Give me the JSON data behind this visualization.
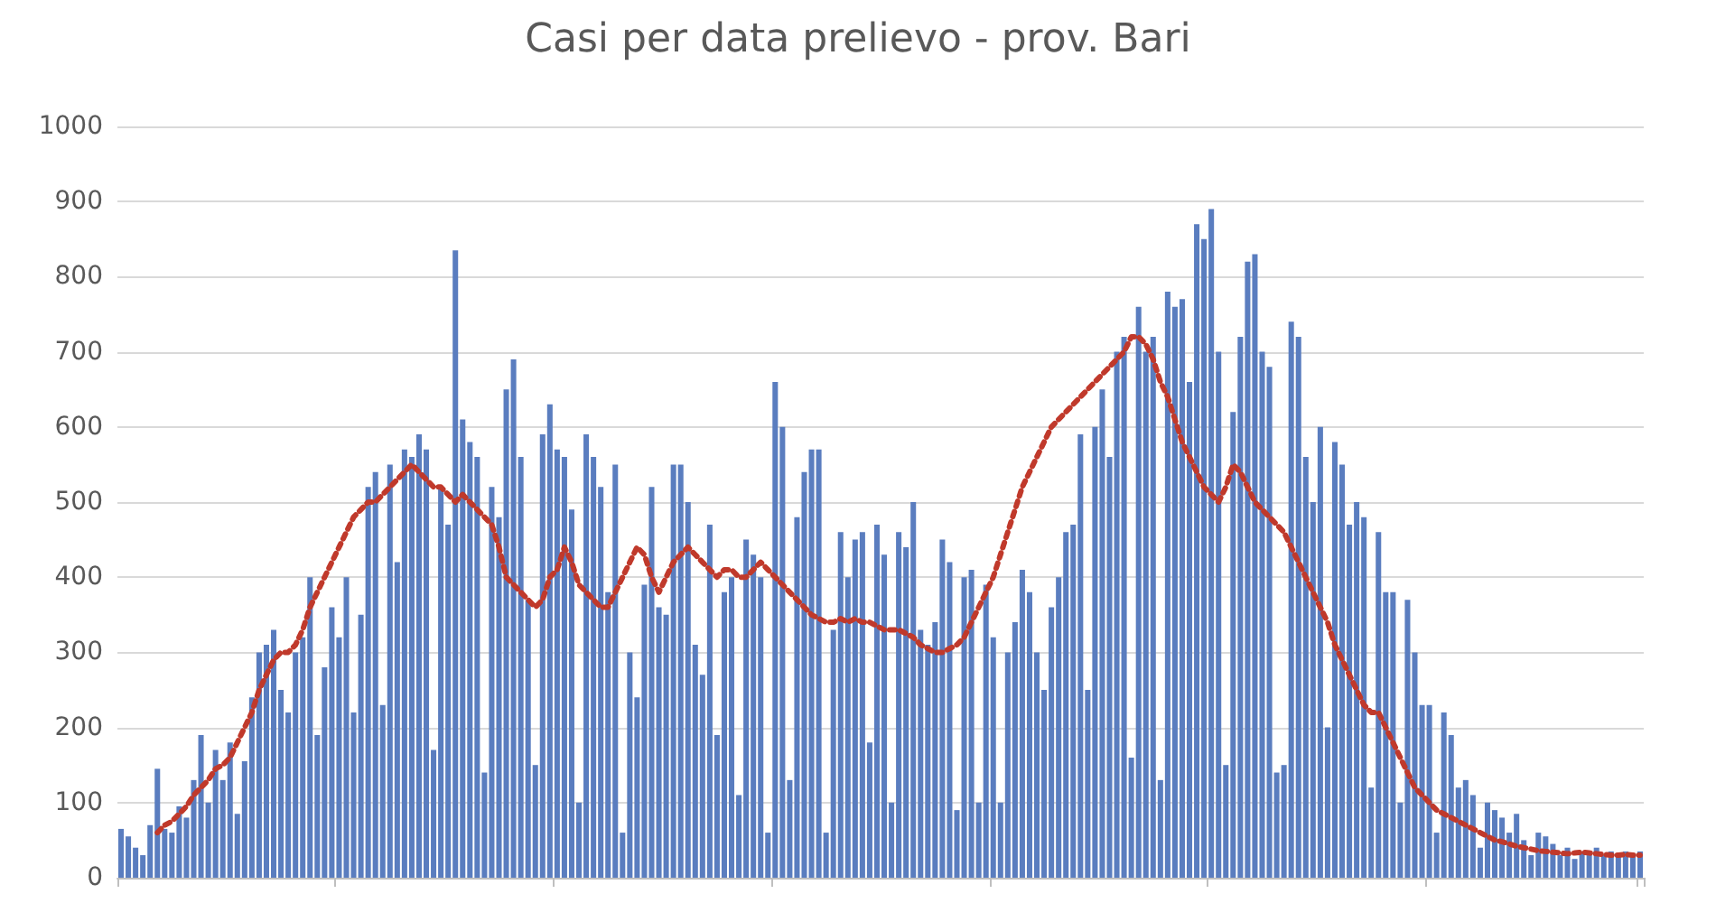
{
  "chart_data": {
    "type": "bar",
    "title": "Casi per data prelievo - prov. Bari",
    "categories": [
      null,
      null,
      null,
      null,
      null,
      null,
      null,
      null,
      null,
      null,
      null,
      null,
      null,
      null,
      null,
      null,
      null,
      null,
      null,
      null,
      null,
      null,
      null,
      null,
      null,
      null,
      null,
      null,
      null,
      null,
      null,
      null,
      null,
      null,
      null,
      null,
      null,
      null,
      null,
      null,
      null,
      null,
      null,
      null,
      null,
      null,
      null,
      null,
      null,
      null,
      null,
      null,
      null,
      null,
      null,
      null,
      null,
      null,
      null,
      null,
      null,
      null,
      null,
      null,
      null,
      null,
      null,
      null,
      null,
      null,
      null,
      null,
      null,
      null,
      null,
      null,
      null,
      null,
      null,
      null,
      null,
      null,
      null,
      null,
      null,
      null,
      null,
      null,
      null,
      null,
      null,
      null,
      null,
      null,
      null,
      null,
      null,
      null,
      null,
      null,
      null,
      null,
      null,
      null,
      null,
      null,
      null,
      null,
      null,
      null,
      null,
      null,
      null,
      null,
      null,
      null,
      null,
      null,
      null,
      null,
      null,
      null,
      null,
      null,
      null,
      null,
      null,
      null,
      null,
      null,
      null,
      null,
      null,
      null,
      null,
      null,
      null,
      null,
      null,
      null,
      null,
      null,
      null,
      null,
      null,
      null,
      null,
      null,
      null,
      null,
      null,
      null,
      null,
      null,
      null,
      null,
      null,
      null,
      null,
      null,
      null,
      null,
      null,
      null,
      null,
      null,
      null,
      null,
      null,
      null,
      null,
      null,
      null,
      null,
      null,
      null,
      null,
      null,
      null,
      null,
      null,
      null,
      null,
      null,
      null,
      null,
      null,
      null,
      null,
      null,
      null,
      null,
      null,
      null,
      null,
      null,
      null,
      null,
      null,
      null,
      null,
      null,
      null,
      null,
      null,
      null,
      null,
      null,
      null,
      null
    ],
    "series": [
      {
        "color": "#5a7dbf",
        "values": [
          65,
          55,
          40,
          30,
          70,
          145,
          65,
          60,
          95,
          80,
          130,
          190,
          100,
          170,
          130,
          180,
          85,
          155,
          240,
          300,
          310,
          330,
          250,
          220,
          300,
          320,
          400,
          190,
          280,
          360,
          320,
          400,
          220,
          350,
          520,
          540,
          230,
          550,
          420,
          570,
          560,
          590,
          570,
          170,
          520,
          470,
          835,
          610,
          580,
          560,
          140,
          520,
          480,
          650,
          690,
          560,
          370,
          150,
          590,
          630,
          570,
          560,
          490,
          100,
          590,
          560,
          520,
          380,
          550,
          60,
          300,
          240,
          390,
          520,
          360,
          350,
          550,
          550,
          500,
          310,
          270,
          470,
          190,
          380,
          400,
          110,
          450,
          430,
          400,
          60,
          660,
          600,
          130,
          480,
          540,
          570,
          570,
          60,
          330,
          460,
          400,
          450,
          460,
          180,
          470,
          430,
          100,
          460,
          440,
          500,
          330,
          310,
          340,
          450,
          420,
          90,
          400,
          410,
          100,
          390,
          320,
          100,
          300,
          340,
          410,
          380,
          300,
          250,
          360,
          400,
          460,
          470,
          590,
          250,
          600,
          650,
          560,
          700,
          720,
          160,
          760,
          700,
          720,
          130,
          780,
          760,
          770,
          660,
          870,
          850,
          890,
          700,
          150,
          620,
          720,
          820,
          830,
          700,
          680,
          140,
          150,
          740,
          720,
          560,
          500,
          600,
          200,
          580,
          550,
          470,
          500,
          480,
          120,
          460,
          380,
          380,
          100,
          370,
          300,
          230,
          230,
          60,
          220,
          190,
          120,
          130,
          110,
          40,
          100,
          90,
          80,
          60,
          85,
          50,
          30,
          60,
          55,
          45,
          30,
          40,
          25,
          35,
          30,
          40,
          30,
          35,
          30,
          35,
          30,
          35
        ]
      },
      {
        "type": "line",
        "color": "#c0392b",
        "line_style": "dotted",
        "values": [
          null,
          null,
          null,
          null,
          null,
          60,
          70,
          75,
          85,
          95,
          110,
          120,
          130,
          145,
          150,
          160,
          180,
          200,
          220,
          250,
          270,
          290,
          300,
          300,
          310,
          330,
          360,
          380,
          400,
          420,
          440,
          460,
          480,
          490,
          500,
          500,
          510,
          520,
          530,
          540,
          550,
          540,
          530,
          520,
          520,
          510,
          500,
          510,
          500,
          490,
          480,
          470,
          440,
          400,
          390,
          380,
          370,
          360,
          370,
          400,
          410,
          440,
          420,
          390,
          380,
          370,
          360,
          360,
          380,
          400,
          420,
          440,
          430,
          400,
          380,
          400,
          420,
          430,
          440,
          430,
          420,
          410,
          400,
          410,
          410,
          400,
          400,
          410,
          420,
          410,
          400,
          390,
          380,
          370,
          360,
          350,
          345,
          340,
          340,
          345,
          340,
          345,
          340,
          340,
          335,
          330,
          330,
          330,
          325,
          320,
          310,
          305,
          300,
          300,
          305,
          310,
          320,
          340,
          360,
          380,
          400,
          430,
          460,
          490,
          520,
          540,
          560,
          580,
          600,
          610,
          620,
          630,
          640,
          650,
          660,
          670,
          680,
          690,
          700,
          720,
          720,
          710,
          690,
          660,
          640,
          610,
          580,
          560,
          540,
          520,
          510,
          500,
          520,
          550,
          540,
          520,
          500,
          490,
          480,
          470,
          460,
          440,
          420,
          400,
          380,
          360,
          340,
          310,
          290,
          270,
          250,
          230,
          220,
          220,
          200,
          180,
          160,
          140,
          120,
          110,
          100,
          90,
          85,
          80,
          75,
          70,
          65,
          60,
          55,
          50,
          48,
          45,
          42,
          40,
          38,
          36,
          35,
          34,
          33,
          32,
          33,
          34,
          33,
          32,
          31,
          30,
          30,
          31,
          30,
          30
        ]
      }
    ],
    "ylim": [
      0,
      1000
    ],
    "yticks": [
      0,
      100,
      200,
      300,
      400,
      500,
      600,
      700,
      800,
      900,
      1000
    ],
    "grid": "y",
    "tick_labels": "y"
  }
}
